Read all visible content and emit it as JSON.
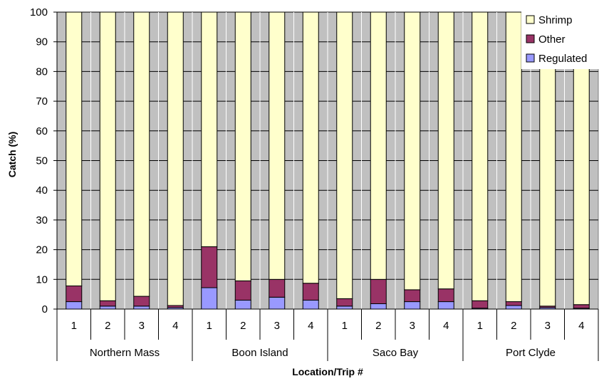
{
  "chart_data": {
    "type": "bar",
    "stacked": true,
    "xlabel": "Location/Trip #",
    "ylabel": "Catch (%)",
    "ylim": [
      0,
      100
    ],
    "yticks": [
      0,
      10,
      20,
      30,
      40,
      50,
      60,
      70,
      80,
      90,
      100
    ],
    "groups": [
      "Northern Mass",
      "Boon Island",
      "Saco Bay",
      "Port Clyde"
    ],
    "categories": [
      "1",
      "2",
      "3",
      "4",
      "1",
      "2",
      "3",
      "4",
      "1",
      "2",
      "3",
      "4",
      "1",
      "2",
      "3",
      "4"
    ],
    "series": [
      {
        "name": "Regulated",
        "color": "#9999ff",
        "values": [
          2.5,
          1.0,
          1.0,
          0.5,
          7.2,
          3.0,
          4.0,
          3.0,
          1.0,
          1.8,
          2.5,
          2.5,
          0.3,
          1.2,
          0.5,
          0.3
        ]
      },
      {
        "name": "Other",
        "color": "#993366",
        "values": [
          5.3,
          1.8,
          3.3,
          0.7,
          13.8,
          6.5,
          6.0,
          5.7,
          2.5,
          8.2,
          4.0,
          4.3,
          2.5,
          1.3,
          0.5,
          1.2
        ]
      },
      {
        "name": "Shrimp",
        "color": "#ffffcc",
        "values": [
          92.2,
          97.2,
          95.7,
          98.8,
          79.0,
          90.5,
          90.0,
          91.3,
          96.5,
          90.0,
          93.5,
          93.2,
          97.2,
          97.5,
          99.0,
          98.5
        ]
      }
    ],
    "legend": {
      "position": "top-right",
      "order": [
        "Shrimp",
        "Other",
        "Regulated"
      ]
    },
    "grid": true,
    "plot_background": "#c0c0c0"
  }
}
